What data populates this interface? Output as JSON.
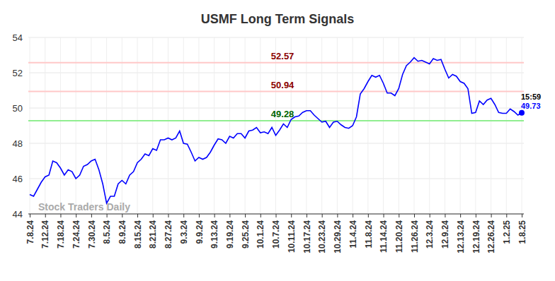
{
  "chart_data": {
    "type": "line",
    "title": "USMF Long Term Signals",
    "watermark": "Stock Traders Daily",
    "categories": [
      "7.8.24",
      null,
      null,
      null,
      "7.12.24",
      null,
      null,
      null,
      "7.18.24",
      null,
      null,
      null,
      "7.24.24",
      null,
      null,
      null,
      "7.30.24",
      null,
      null,
      null,
      "8.5.24",
      null,
      null,
      null,
      "8.9.24",
      null,
      null,
      null,
      "8.15.24",
      null,
      null,
      null,
      "8.21.24",
      null,
      null,
      null,
      "8.27.24",
      null,
      null,
      null,
      "9.3.24",
      null,
      null,
      null,
      "9.9.24",
      null,
      null,
      null,
      "9.13.24",
      null,
      null,
      null,
      "9.19.24",
      null,
      null,
      null,
      "9.25.24",
      null,
      null,
      null,
      "10.1.24",
      null,
      null,
      null,
      "10.7.24",
      null,
      null,
      null,
      "10.11.24",
      null,
      null,
      null,
      "10.17.24",
      null,
      null,
      null,
      "10.23.24",
      null,
      null,
      null,
      "10.29.24",
      null,
      null,
      null,
      "11.4.24",
      null,
      null,
      null,
      "11.8.24",
      null,
      null,
      null,
      "11.14.24",
      null,
      null,
      null,
      "11.20.24",
      null,
      null,
      null,
      "11.26.24",
      null,
      null,
      null,
      "12.3.24",
      null,
      null,
      null,
      "12.9.24",
      null,
      null,
      null,
      "12.13.24",
      null,
      null,
      null,
      "12.19.24",
      null,
      null,
      null,
      "12.26.24",
      null,
      null,
      null,
      "1.2.25",
      null,
      null,
      null,
      "1.8.25"
    ],
    "series": [
      {
        "name": "USMF",
        "color": "#0000ff",
        "values": [
          45.1,
          45.0,
          45.4,
          45.8,
          46.1,
          46.2,
          47.0,
          46.9,
          46.6,
          46.2,
          46.5,
          46.4,
          46.0,
          46.2,
          46.7,
          46.8,
          47.0,
          47.1,
          46.5,
          45.7,
          44.6,
          45.0,
          45.0,
          45.7,
          45.9,
          45.7,
          46.2,
          46.4,
          46.9,
          47.1,
          47.4,
          47.3,
          47.7,
          47.6,
          48.2,
          48.2,
          48.3,
          48.2,
          48.3,
          48.7,
          48.0,
          47.95,
          47.5,
          47.0,
          47.2,
          47.1,
          47.2,
          47.5,
          47.9,
          48.25,
          48.2,
          48.0,
          48.4,
          48.3,
          48.55,
          48.55,
          48.3,
          48.7,
          48.75,
          48.9,
          48.6,
          48.65,
          48.55,
          48.9,
          48.45,
          48.75,
          49.1,
          48.9,
          49.35,
          49.5,
          49.55,
          49.75,
          49.85,
          49.85,
          49.6,
          49.4,
          49.2,
          49.25,
          48.9,
          49.2,
          49.25,
          49.05,
          48.9,
          48.85,
          49.0,
          49.5,
          50.8,
          51.1,
          51.5,
          51.85,
          51.75,
          51.85,
          51.4,
          50.85,
          50.85,
          50.7,
          51.1,
          51.9,
          52.4,
          52.6,
          52.85,
          52.65,
          52.7,
          52.6,
          52.5,
          52.8,
          52.7,
          52.75,
          52.2,
          51.7,
          51.9,
          51.8,
          51.5,
          51.4,
          51.1,
          49.7,
          49.75,
          50.4,
          50.2,
          50.45,
          50.55,
          50.2,
          49.75,
          49.7,
          49.7,
          49.95,
          49.8,
          49.6,
          49.73
        ]
      }
    ],
    "last_time": "15:59",
    "reference_lines": [
      {
        "value": 52.57,
        "color": "#ffc8c8",
        "label_color": "#8b0000"
      },
      {
        "value": 50.94,
        "color": "#ffc8c8",
        "label_color": "#8b0000"
      },
      {
        "value": 49.28,
        "color": "#90ee90",
        "label_color": "#006400"
      }
    ],
    "ylim": [
      44,
      54
    ],
    "yticks": [
      44,
      46,
      48,
      50,
      52,
      54
    ],
    "grid": true
  }
}
